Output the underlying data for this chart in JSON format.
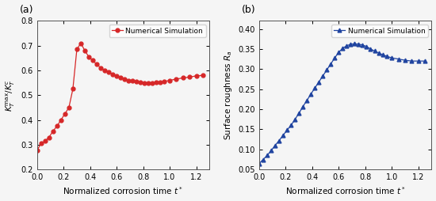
{
  "panel_a": {
    "label": "(a)",
    "x": [
      0.0,
      0.03,
      0.06,
      0.09,
      0.12,
      0.15,
      0.18,
      0.21,
      0.24,
      0.27,
      0.3,
      0.33,
      0.36,
      0.39,
      0.42,
      0.45,
      0.48,
      0.51,
      0.54,
      0.57,
      0.6,
      0.63,
      0.66,
      0.69,
      0.72,
      0.75,
      0.78,
      0.81,
      0.84,
      0.87,
      0.9,
      0.93,
      0.96,
      1.0,
      1.05,
      1.1,
      1.15,
      1.2,
      1.25
    ],
    "y": [
      0.278,
      0.305,
      0.315,
      0.33,
      0.355,
      0.375,
      0.4,
      0.425,
      0.45,
      0.525,
      0.685,
      0.71,
      0.68,
      0.655,
      0.64,
      0.625,
      0.61,
      0.6,
      0.593,
      0.585,
      0.578,
      0.572,
      0.565,
      0.56,
      0.558,
      0.555,
      0.553,
      0.55,
      0.55,
      0.55,
      0.552,
      0.553,
      0.555,
      0.56,
      0.565,
      0.57,
      0.573,
      0.578,
      0.58
    ],
    "color": "#d62728",
    "marker": "o",
    "markersize": 3.5,
    "legend": "Numerical Simulation",
    "xlabel": "Normalized corrosion time $t^*$",
    "ylabel": "$K_T^{\\rm max}/K_T^c$",
    "xlim": [
      0.0,
      1.3
    ],
    "ylim": [
      0.2,
      0.8
    ],
    "yticks": [
      0.2,
      0.3,
      0.4,
      0.5,
      0.6,
      0.7,
      0.8
    ],
    "xticks": [
      0.0,
      0.2,
      0.4,
      0.6,
      0.8,
      1.0,
      1.2
    ]
  },
  "panel_b": {
    "label": "(b)",
    "x": [
      0.0,
      0.03,
      0.06,
      0.09,
      0.12,
      0.15,
      0.18,
      0.21,
      0.24,
      0.27,
      0.3,
      0.33,
      0.36,
      0.39,
      0.42,
      0.45,
      0.48,
      0.51,
      0.54,
      0.57,
      0.6,
      0.63,
      0.66,
      0.69,
      0.72,
      0.75,
      0.78,
      0.81,
      0.84,
      0.87,
      0.9,
      0.93,
      0.96,
      1.0,
      1.05,
      1.1,
      1.15,
      1.2,
      1.25
    ],
    "y": [
      0.065,
      0.075,
      0.085,
      0.097,
      0.11,
      0.122,
      0.135,
      0.148,
      0.16,
      0.175,
      0.19,
      0.207,
      0.222,
      0.238,
      0.253,
      0.268,
      0.283,
      0.298,
      0.313,
      0.328,
      0.342,
      0.352,
      0.358,
      0.362,
      0.363,
      0.362,
      0.36,
      0.356,
      0.35,
      0.345,
      0.34,
      0.336,
      0.332,
      0.328,
      0.325,
      0.322,
      0.32,
      0.32,
      0.32
    ],
    "color": "#2044a0",
    "marker": "^",
    "markersize": 3.5,
    "legend": "Numerical Simulation",
    "xlabel": "Normalized corrosion time $t^*$",
    "ylabel": "Surface roughness $R_a$",
    "xlim": [
      0.0,
      1.3
    ],
    "ylim": [
      0.05,
      0.42
    ],
    "yticks": [
      0.05,
      0.1,
      0.15,
      0.2,
      0.25,
      0.3,
      0.35,
      0.4
    ],
    "xticks": [
      0.0,
      0.2,
      0.4,
      0.6,
      0.8,
      1.0,
      1.2
    ]
  },
  "figsize": [
    5.5,
    2.54
  ],
  "dpi": 100,
  "bg_color": "#f5f5f5"
}
